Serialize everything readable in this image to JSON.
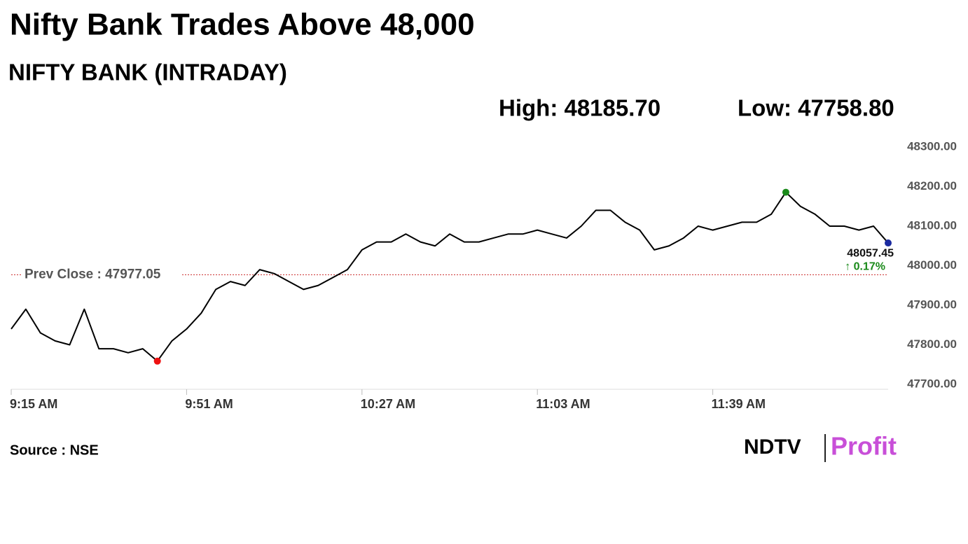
{
  "chart_data": {
    "type": "line",
    "title": "Nifty Bank Trades Above 48,000",
    "subtitle": "NIFTY BANK (INTRADAY)",
    "high": {
      "value": 48185.7,
      "label": "High: 48185.70"
    },
    "low": {
      "value": 47758.8,
      "label": "Low: 47758.80"
    },
    "prev_close": {
      "value": 47977.05,
      "label": "Prev Close : 47977.05"
    },
    "change": {
      "value": 0.17,
      "label": "↑ 0.17%"
    },
    "source": "Source : NSE",
    "logo": [
      "NDTV",
      "Profit"
    ],
    "x": [
      "9:15 AM",
      null,
      null,
      null,
      null,
      null,
      null,
      null,
      null,
      null,
      null,
      null,
      "9:51 AM",
      null,
      null,
      null,
      null,
      null,
      null,
      null,
      null,
      null,
      null,
      null,
      "10:27 AM",
      null,
      null,
      null,
      null,
      null,
      null,
      null,
      null,
      null,
      null,
      null,
      "11:03 AM",
      null,
      null,
      null,
      null,
      null,
      null,
      null,
      null,
      null,
      null,
      null,
      "11:39 AM",
      null,
      null,
      null,
      null,
      null,
      null,
      null,
      null,
      null,
      null,
      null,
      null
    ],
    "series": [
      {
        "color": "#000000",
        "values": [
          47840,
          47890,
          47830,
          47810,
          47800,
          47890,
          47790,
          47790,
          47780,
          47790,
          47758.8,
          47810,
          47840,
          47880,
          47940,
          47960,
          47950,
          47990,
          47980,
          47960,
          47940,
          47950,
          47970,
          47990,
          48040,
          48060,
          48060,
          48080,
          48060,
          48050,
          48080,
          48060,
          48060,
          48070,
          48080,
          48080,
          48090,
          48080,
          48070,
          48100,
          48140,
          48140,
          48110,
          48090,
          48040,
          48050,
          48070,
          48100,
          48090,
          48100,
          48110,
          48110,
          48130,
          48185.7,
          48150,
          48130,
          48100,
          48100,
          48090,
          48100,
          48057.45
        ]
      }
    ],
    "ylim": [
      47700,
      48300
    ],
    "yticks": [
      {
        "value": 47700,
        "label": "47700.00"
      },
      {
        "value": 47800,
        "label": "47800.00"
      },
      {
        "value": 47900,
        "label": "47900.00"
      },
      {
        "value": 48000,
        "label": "48000.00"
      },
      {
        "value": 48100,
        "label": "48100.00"
      },
      {
        "value": 48200,
        "label": "48200.00"
      },
      {
        "value": 48300,
        "label": "48300.00"
      }
    ],
    "marker_colors": {
      "high": "#1a8a1a",
      "low": "#ee1111",
      "last": "#1a2aa0"
    },
    "grid": false
  }
}
